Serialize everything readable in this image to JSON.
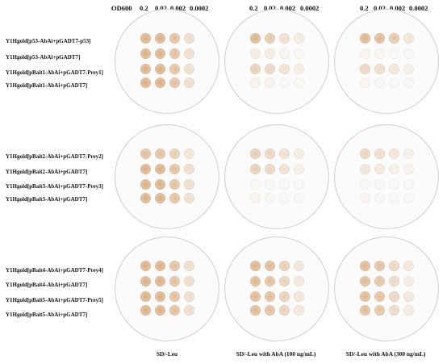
{
  "header": {
    "od_label": "OD600",
    "dilutions": [
      "0.2",
      "0.02",
      "0.002",
      "0.0002"
    ]
  },
  "groups": [
    {
      "rows": [
        "Y1Hgold[p53-AbAi+pGADT7-p53]",
        "Y1Hgold[p53-AbAi+pGADT7]",
        "Y1Hgold[pBait1-AbAi+pGADT7-Prey1]",
        "Y1Hgold[pBait1-AbAi+pGADT7]"
      ],
      "growth": [
        [
          [
            1,
            1,
            0.8,
            0.4
          ],
          [
            1,
            1,
            0.8,
            0.4
          ],
          [
            1,
            1,
            0.8,
            0.4
          ],
          [
            1,
            1,
            0.8,
            0.4
          ]
        ],
        [
          [
            0.95,
            0.7,
            0.4,
            0.2
          ],
          [
            0.2,
            0.2,
            0.1,
            0.05
          ],
          [
            0.6,
            0.5,
            0.35,
            0.2
          ],
          [
            0.1,
            0.1,
            0.05,
            0.03
          ]
        ],
        [
          [
            0.95,
            0.9,
            0.7,
            0.3
          ],
          [
            0.1,
            0.08,
            0.05,
            0.03
          ],
          [
            0.5,
            0.4,
            0.3,
            0.15
          ],
          [
            0.08,
            0.05,
            0.03,
            0.02
          ]
        ]
      ]
    },
    {
      "rows": [
        "Y1Hgold[pBait2-AbAi+pGADT7-Prey2]",
        "Y1Hgold[pBait2-AbAi+pGADT7]",
        "Y1Hgold[pBait3-AbAi+pGADT7-Prey3]",
        "Y1Hgold[pBait3-AbAi+pGADT7]"
      ],
      "growth": [
        [
          [
            0.8,
            0.8,
            0.6,
            0.3
          ],
          [
            1,
            1,
            0.8,
            0.4
          ],
          [
            1,
            1,
            0.8,
            0.4
          ],
          [
            1,
            1,
            0.8,
            0.4
          ]
        ],
        [
          [
            0.6,
            0.5,
            0.35,
            0.2
          ],
          [
            0.6,
            0.5,
            0.35,
            0.15
          ],
          [
            0.05,
            0.05,
            0.03,
            0.02
          ],
          [
            0.1,
            0.08,
            0.05,
            0.03
          ]
        ],
        [
          [
            0.5,
            0.4,
            0.3,
            0.15
          ],
          [
            0.3,
            0.25,
            0.15,
            0.1
          ],
          [
            0.05,
            0.05,
            0.03,
            0.02
          ],
          [
            0.08,
            0.05,
            0.03,
            0.02
          ]
        ]
      ]
    },
    {
      "rows": [
        "Y1Hgold[pBait4-AbAi+pGADT7-Prey4]",
        "Y1Hgold[pBait4-AbAi+pGADT7]",
        "Y1Hgold[pBait5-AbAi+pGADT7-Prey5]",
        "Y1Hgold[pBait5-AbAi+pGADT7]"
      ],
      "growth": [
        [
          [
            1,
            1,
            0.8,
            0.4
          ],
          [
            1,
            1,
            0.8,
            0.4
          ],
          [
            1,
            1,
            0.8,
            0.4
          ],
          [
            1,
            1,
            0.8,
            0.4
          ]
        ],
        [
          [
            0.95,
            0.9,
            0.6,
            0.3
          ],
          [
            0.9,
            0.8,
            0.55,
            0.25
          ],
          [
            0.9,
            0.85,
            0.6,
            0.3
          ],
          [
            0.9,
            0.8,
            0.55,
            0.25
          ]
        ],
        [
          [
            0.9,
            0.8,
            0.5,
            0.25
          ],
          [
            0.85,
            0.75,
            0.45,
            0.2
          ],
          [
            0.9,
            0.8,
            0.5,
            0.25
          ],
          [
            0.85,
            0.75,
            0.45,
            0.2
          ]
        ]
      ]
    }
  ],
  "conditions": [
    "SD/-Leu",
    "SD/-Leu with AbA (100 ng/mL)",
    "SD/-Leu with AbA (300 ng/mL)"
  ],
  "colors": {
    "colony": "#d9a878",
    "plate_rim": "#cfcfcf",
    "plate_fill": "#fbfbfb"
  }
}
